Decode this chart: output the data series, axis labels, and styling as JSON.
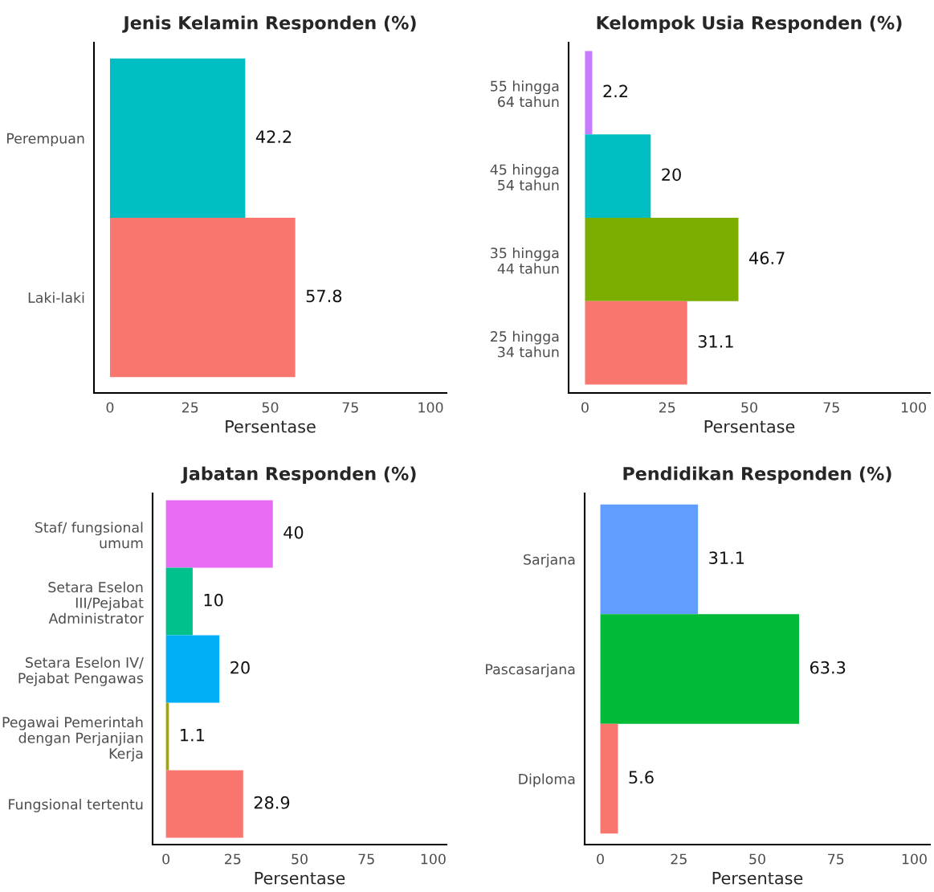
{
  "chart_data": [
    {
      "type": "bar",
      "orientation": "horizontal",
      "title": "Jenis Kelamin Responden (%)",
      "xlabel": "Persentase",
      "categories": [
        "Perempuan",
        "Laki-laki"
      ],
      "values": [
        42.2,
        57.8
      ],
      "colors": [
        "#00bfc4",
        "#f8766d"
      ],
      "xlim": [
        -5,
        105
      ],
      "xticks": [
        0,
        25,
        50,
        75,
        100
      ],
      "data_labels": true,
      "grid": false,
      "legend": false
    },
    {
      "type": "bar",
      "orientation": "horizontal",
      "title": "Kelompok Usia Responden (%)",
      "xlabel": "Persentase",
      "categories": [
        "55 hingga\n64 tahun",
        "45 hingga\n54 tahun",
        "35 hingga\n44 tahun",
        "25 hingga\n34 tahun"
      ],
      "values": [
        2.2,
        20,
        46.7,
        31.1
      ],
      "colors": [
        "#c77cff",
        "#00bfc4",
        "#7cae00",
        "#f8766d"
      ],
      "xlim": [
        -5,
        105
      ],
      "xticks": [
        0,
        25,
        50,
        75,
        100
      ],
      "data_labels": true,
      "grid": false,
      "legend": false
    },
    {
      "type": "bar",
      "orientation": "horizontal",
      "title": "Jabatan Responden (%)",
      "xlabel": "Persentase",
      "categories": [
        "Staf/ fungsional\numum",
        "Setara Eselon\nIII/Pejabat\nAdministrator",
        "Setara Eselon IV/\nPejabat Pengawas",
        "Pegawai Pemerintah\ndengan Perjanjian\nKerja",
        "Fungsional tertentu"
      ],
      "values": [
        40,
        10,
        20,
        1.1,
        28.9
      ],
      "colors": [
        "#e76bf3",
        "#00c08b",
        "#00b0f6",
        "#a3a500",
        "#f8766d"
      ],
      "xlim": [
        -5,
        105
      ],
      "xticks": [
        0,
        25,
        50,
        75,
        100
      ],
      "data_labels": true,
      "grid": false,
      "legend": false
    },
    {
      "type": "bar",
      "orientation": "horizontal",
      "title": "Pendidikan Responden (%)",
      "xlabel": "Persentase",
      "categories": [
        "Sarjana",
        "Pascasarjana",
        "Diploma"
      ],
      "values": [
        31.1,
        63.3,
        5.6
      ],
      "colors": [
        "#619cff",
        "#00ba38",
        "#f8766d"
      ],
      "xlim": [
        -5,
        105
      ],
      "xticks": [
        0,
        25,
        50,
        75,
        100
      ],
      "data_labels": true,
      "grid": false,
      "legend": false
    }
  ]
}
